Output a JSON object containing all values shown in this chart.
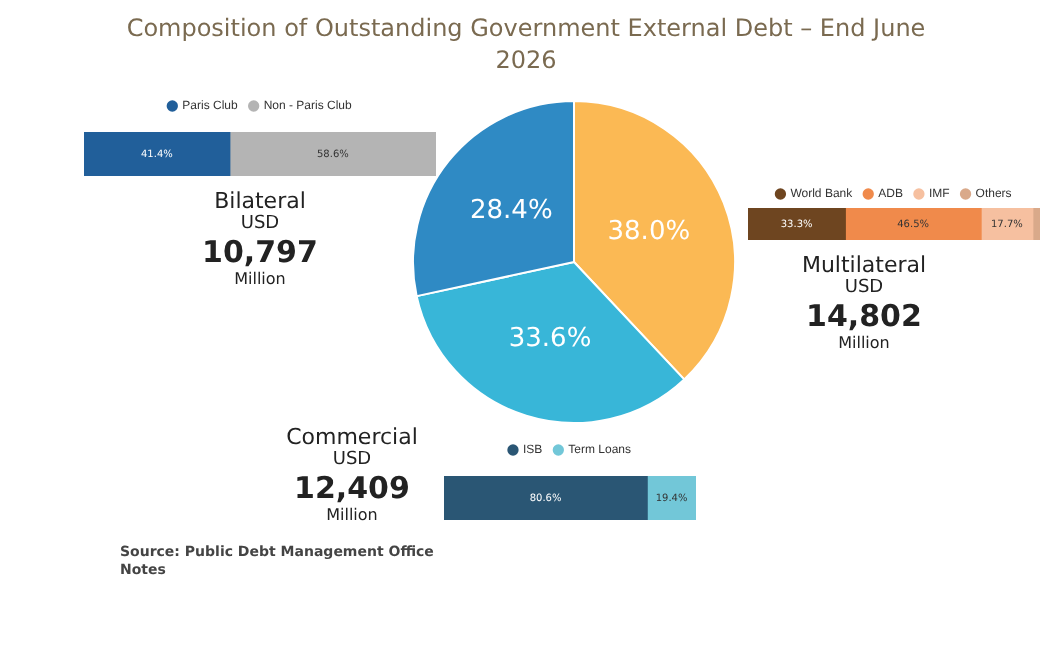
{
  "chart_data": [
    {
      "type": "pie",
      "title": "Composition of Outstanding Government External Debt – End June 2026",
      "categories": [
        null,
        null,
        null
      ],
      "values": [
        38.0,
        33.6,
        28.4
      ],
      "colors": [
        "#fbb954",
        "#38b6d8",
        "#2f8ac4"
      ],
      "value_labels": [
        "38.0%",
        "33.6%",
        "28.4%"
      ],
      "legend": false,
      "annotations": [
        "Source: Public Debt Management Office",
        "Notes"
      ]
    },
    {
      "type": "bar",
      "title": "Bilateral",
      "orientation": "horizontal",
      "stacked": true,
      "categories": [
        null
      ],
      "legend": "top",
      "series": [
        {
          "name": "Paris Club",
          "color": "#215f9a",
          "values": [
            41.4
          ],
          "value_labels": [
            "41.4%"
          ]
        },
        {
          "name": "Non - Paris Club",
          "color": "#b4b4b4",
          "values": [
            58.6
          ],
          "value_labels": [
            "58.6%"
          ]
        }
      ],
      "annotations": [
        "USD",
        "10,797",
        "Million"
      ]
    },
    {
      "type": "bar",
      "title": "Multilateral",
      "orientation": "horizontal",
      "stacked": true,
      "categories": [
        null
      ],
      "legend": "top",
      "series": [
        {
          "name": "World Bank",
          "color": "#6e4520",
          "values": [
            33.3
          ],
          "value_labels": [
            "33.3%"
          ]
        },
        {
          "name": "ADB",
          "color": "#f08a4b",
          "values": [
            46.5
          ],
          "value_labels": [
            "46.5%"
          ]
        },
        {
          "name": "IMF",
          "color": "#f6c0a0",
          "values": [
            17.7
          ],
          "value_labels": [
            "17.7%"
          ]
        },
        {
          "name": "Others",
          "color": "#d9a98a",
          "values": [
            2.5
          ],
          "value_labels": [
            null
          ]
        }
      ],
      "annotations": [
        "USD",
        "14,802",
        "Million"
      ]
    },
    {
      "type": "bar",
      "title": "Commercial",
      "orientation": "horizontal",
      "stacked": true,
      "categories": [
        null
      ],
      "legend": "top",
      "series": [
        {
          "name": "ISB",
          "color": "#2a5674",
          "values": [
            80.6
          ],
          "value_labels": [
            "80.6%"
          ]
        },
        {
          "name": "Term Loans",
          "color": "#72c7d8",
          "values": [
            19.4
          ],
          "value_labels": [
            "19.4%"
          ]
        }
      ],
      "annotations": [
        "USD",
        "12,409",
        "Million"
      ]
    }
  ]
}
